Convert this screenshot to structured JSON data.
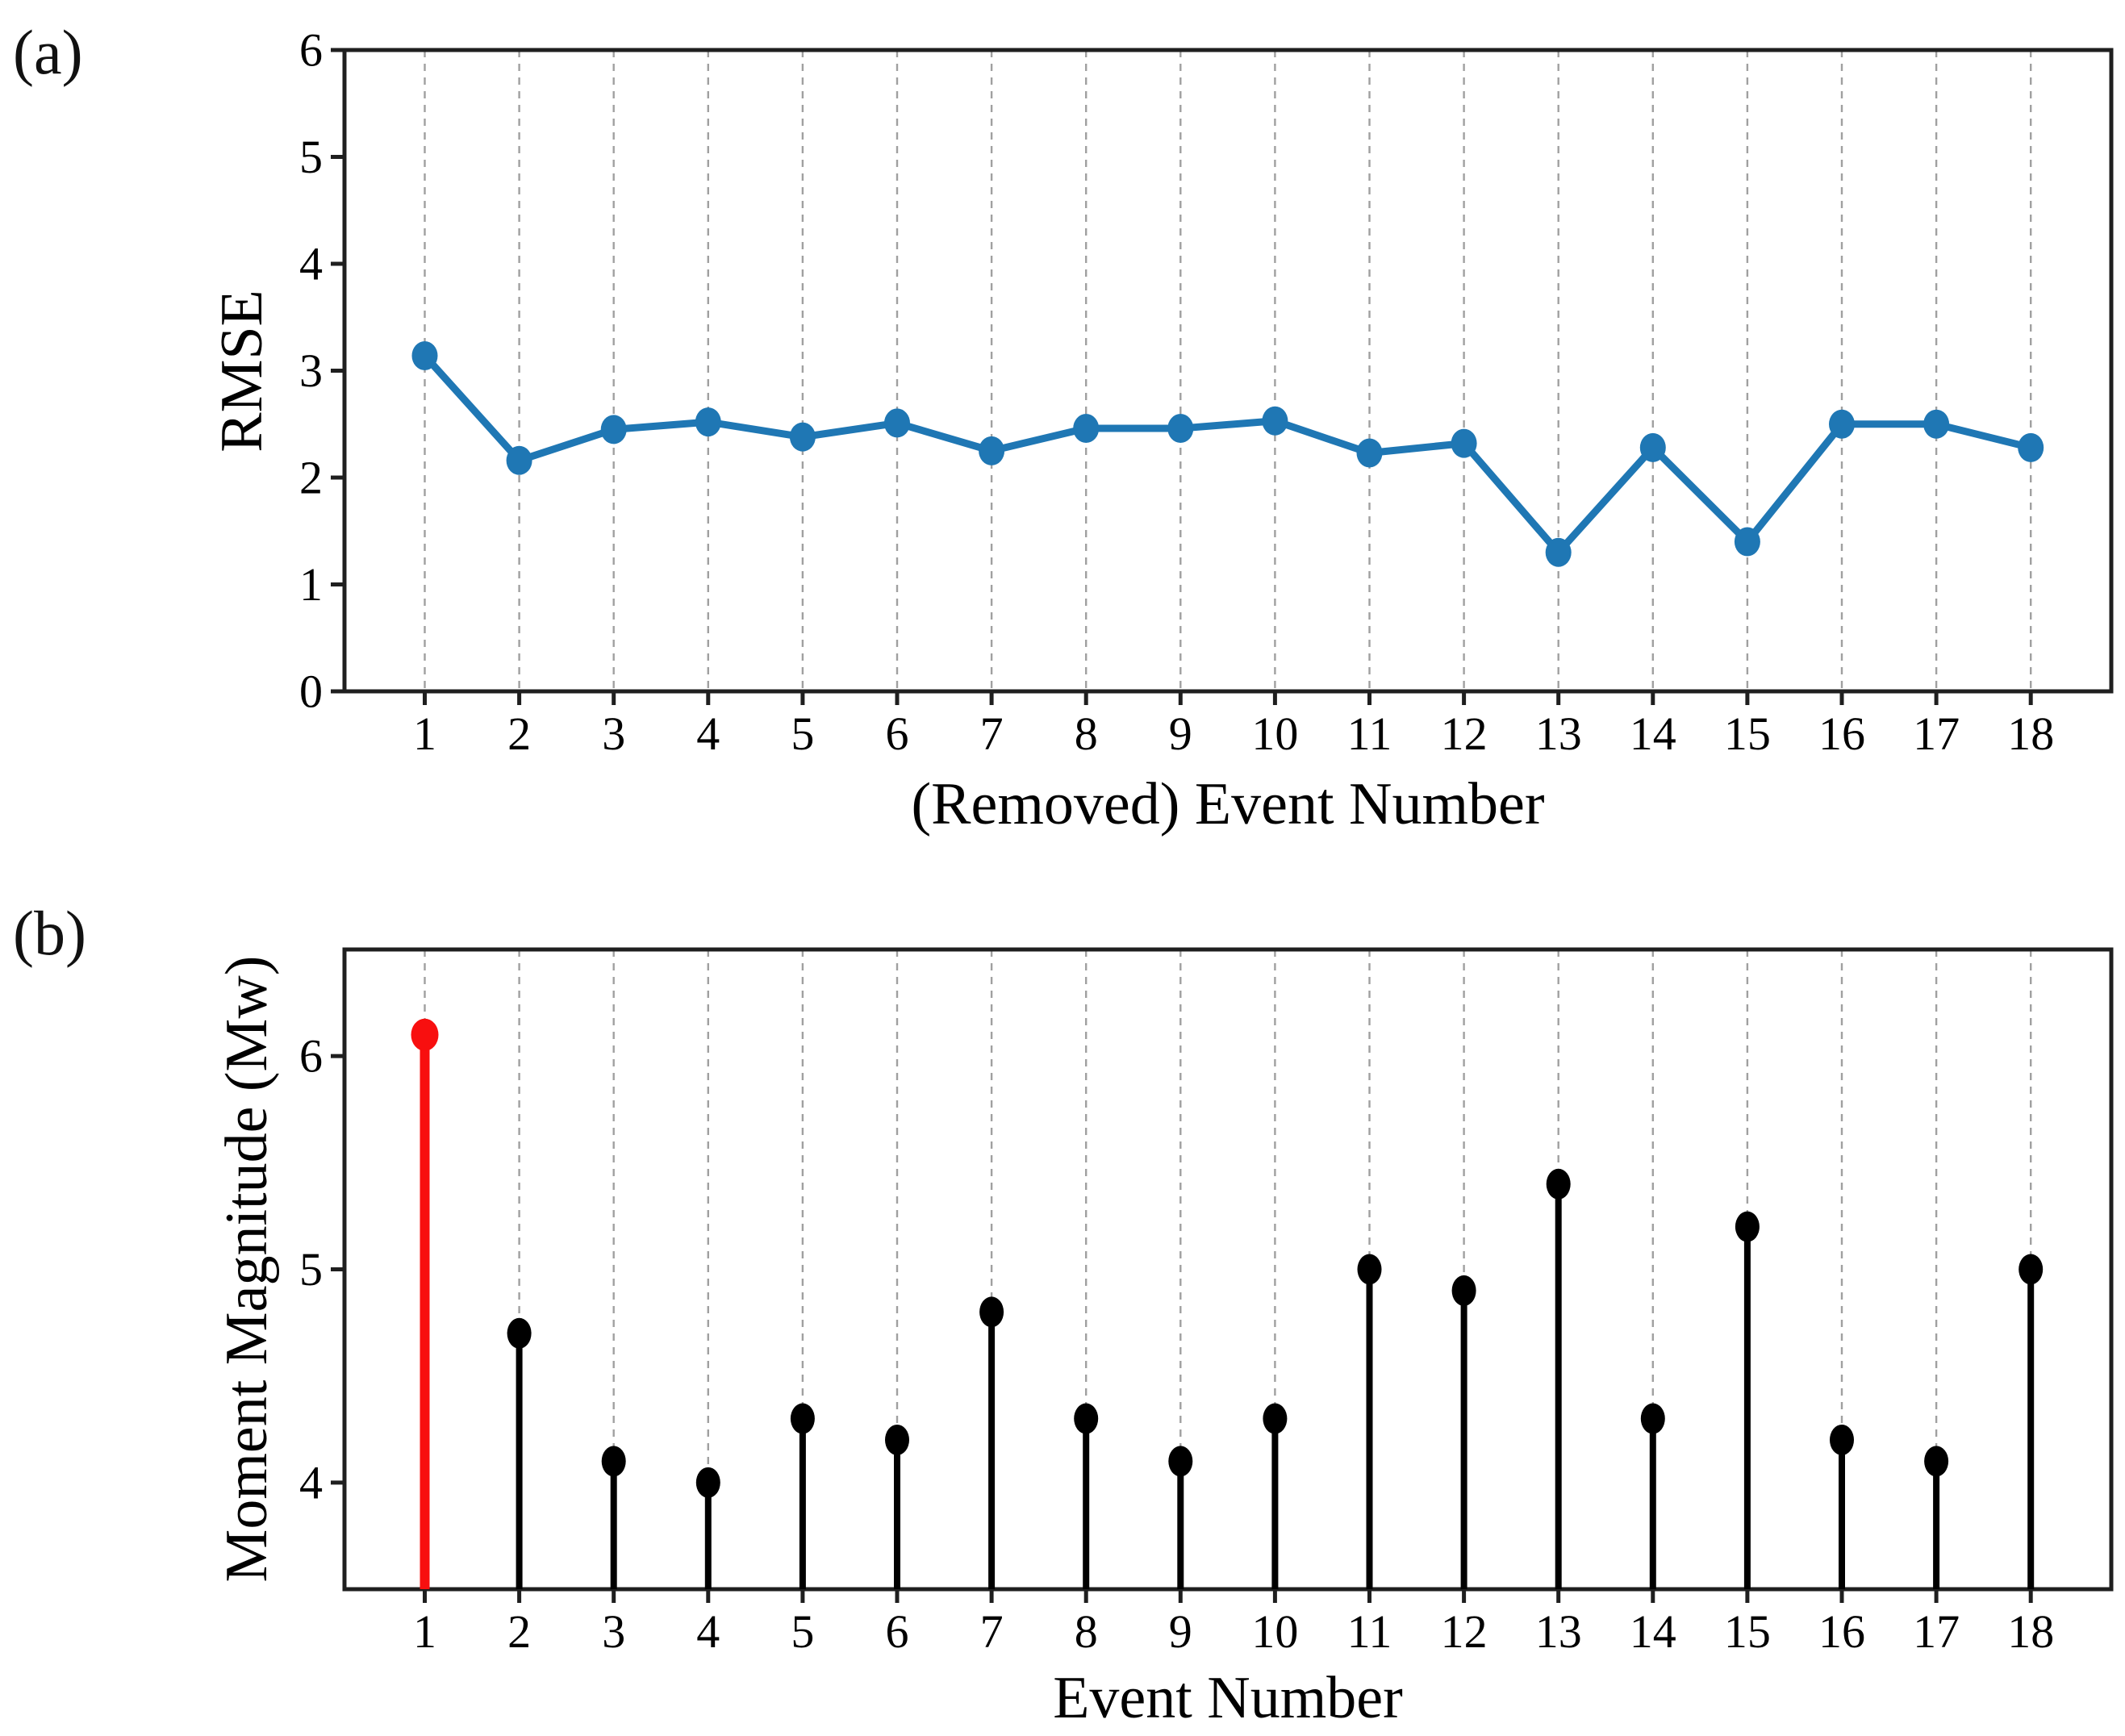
{
  "panels": [
    {
      "label": "(a)"
    },
    {
      "label": "(b)"
    }
  ],
  "chart_data": [
    {
      "type": "line",
      "panel": "(a)",
      "title": "",
      "xlabel": "(Removed) Event Number",
      "ylabel": "RMSE",
      "categories": [
        1,
        2,
        3,
        4,
        5,
        6,
        7,
        8,
        9,
        10,
        11,
        12,
        13,
        14,
        15,
        16,
        17,
        18
      ],
      "values": [
        3.14,
        2.16,
        2.45,
        2.52,
        2.38,
        2.51,
        2.25,
        2.46,
        2.46,
        2.53,
        2.23,
        2.32,
        1.3,
        2.28,
        1.4,
        2.5,
        2.5,
        2.28
      ],
      "ylim": [
        0,
        6
      ],
      "yticks": [
        0,
        1,
        2,
        3,
        4,
        5,
        6
      ],
      "grid": "vertical-dashed",
      "legend": "none",
      "line_color": "#1f77b4",
      "marker": "circle",
      "grid_color": "#a0a0a0",
      "spine_color": "#1f1f1f"
    },
    {
      "type": "stem",
      "panel": "(b)",
      "title": "",
      "xlabel": "Event Number",
      "ylabel": "Moment Magnitude (Mw)",
      "categories": [
        1,
        2,
        3,
        4,
        5,
        6,
        7,
        8,
        9,
        10,
        11,
        12,
        13,
        14,
        15,
        16,
        17,
        18
      ],
      "values": [
        6.1,
        4.7,
        4.1,
        4.0,
        4.3,
        4.2,
        4.8,
        4.3,
        4.1,
        4.3,
        5.0,
        4.9,
        5.4,
        4.3,
        5.2,
        4.2,
        4.1,
        5.0
      ],
      "ylim": [
        3.5,
        6.5
      ],
      "yticks": [
        4,
        5,
        6
      ],
      "grid": "vertical-dashed",
      "legend": "none",
      "stem_color": "#000000",
      "marker": "circle",
      "highlight_event": 1,
      "highlight_color": "#f80f0f",
      "grid_color": "#a0a0a0",
      "spine_color": "#1f1f1f"
    }
  ]
}
